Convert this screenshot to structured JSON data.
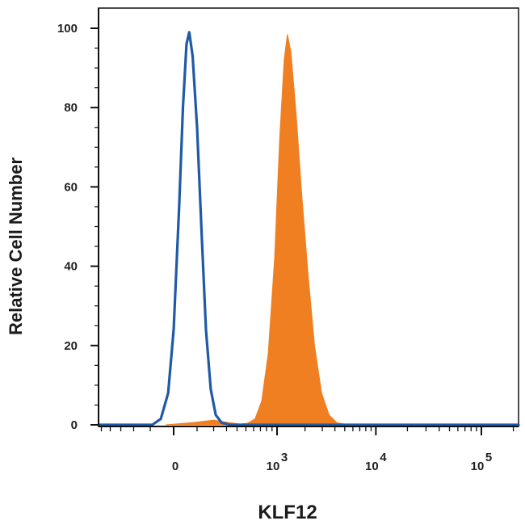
{
  "chart_data": {
    "type": "area",
    "title": "",
    "xlabel": "KLF12",
    "ylabel": "Relative Cell Number",
    "x_scale": "biexponential",
    "xlim": [
      -800,
      250000
    ],
    "ylim": [
      0,
      100
    ],
    "grid": false,
    "legend": "none",
    "x_ticks": [
      {
        "value": 0,
        "label": "0",
        "exp": ""
      },
      {
        "value": 1000,
        "label": "10",
        "exp": "3"
      },
      {
        "value": 10000,
        "label": "10",
        "exp": "4"
      },
      {
        "value": 100000,
        "label": "10",
        "exp": "5"
      }
    ],
    "y_ticks": [
      {
        "value": 0,
        "label": "0"
      },
      {
        "value": 20,
        "label": "20"
      },
      {
        "value": 40,
        "label": "40"
      },
      {
        "value": 60,
        "label": "60"
      },
      {
        "value": 80,
        "label": "80"
      },
      {
        "value": 100,
        "label": "100"
      }
    ],
    "series": [
      {
        "style": "filled",
        "color": "#f07f22",
        "points": [
          [
            -30,
            0
          ],
          [
            80,
            0.6
          ],
          [
            200,
            1.2
          ],
          [
            320,
            0.6
          ],
          [
            430,
            0.2
          ],
          [
            520,
            0.4
          ],
          [
            620,
            1.5
          ],
          [
            720,
            6
          ],
          [
            830,
            18
          ],
          [
            950,
            42
          ],
          [
            1070,
            72
          ],
          [
            1200,
            92
          ],
          [
            1300,
            98.5
          ],
          [
            1420,
            94
          ],
          [
            1620,
            78
          ],
          [
            1850,
            58
          ],
          [
            2150,
            38
          ],
          [
            2500,
            20
          ],
          [
            2950,
            8
          ],
          [
            3500,
            2.5
          ],
          [
            4200,
            0.5
          ],
          [
            5500,
            0
          ],
          [
            240000,
            0
          ]
        ]
      },
      {
        "style": "outline",
        "color": "#1f5aa6",
        "points": [
          [
            -800,
            0
          ],
          [
            -90,
            0
          ],
          [
            -50,
            1.5
          ],
          [
            -20,
            8
          ],
          [
            0,
            24
          ],
          [
            20,
            55
          ],
          [
            35,
            80
          ],
          [
            50,
            96
          ],
          [
            62,
            99
          ],
          [
            78,
            93
          ],
          [
            100,
            75
          ],
          [
            125,
            48
          ],
          [
            150,
            24
          ],
          [
            180,
            9
          ],
          [
            215,
            2.5
          ],
          [
            260,
            0.5
          ],
          [
            330,
            0
          ],
          [
            240000,
            0
          ]
        ]
      }
    ]
  }
}
